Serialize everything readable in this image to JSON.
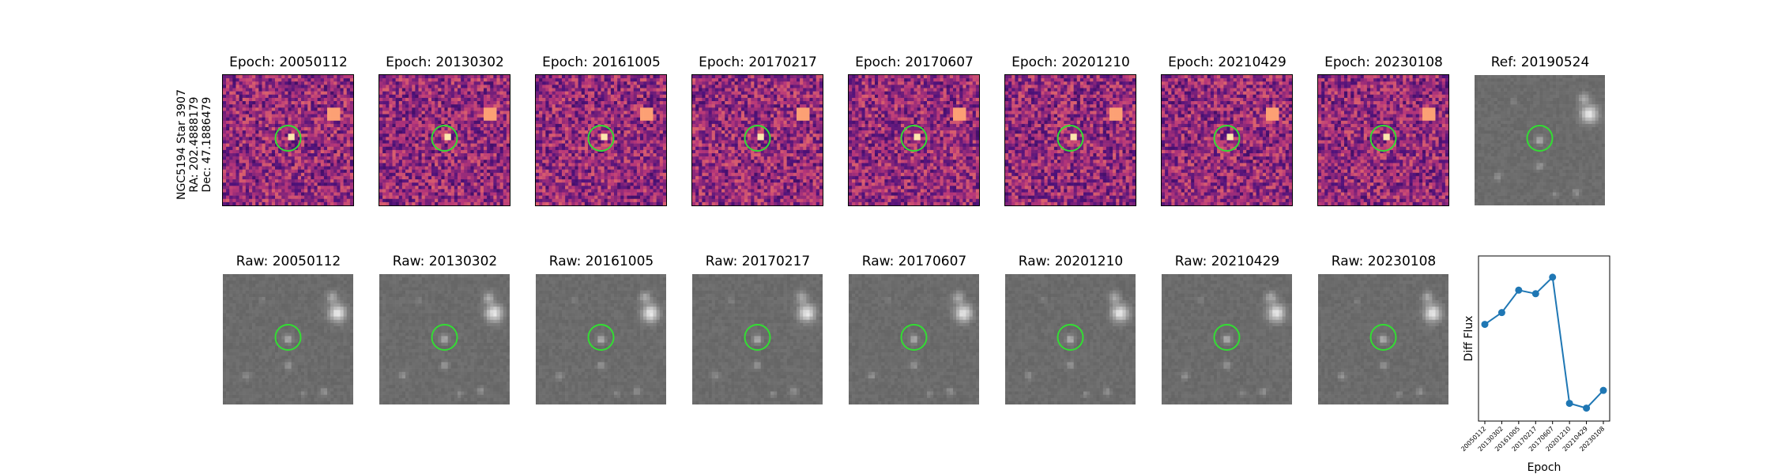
{
  "side_label": {
    "line1": "NGC5194 Star 3907",
    "line2": "RA: 202.4888179",
    "line3": "Dec: 47.1886479"
  },
  "diff_panels": [
    {
      "title": "Epoch: 20050112"
    },
    {
      "title": "Epoch: 20130302"
    },
    {
      "title": "Epoch: 20161005"
    },
    {
      "title": "Epoch: 20170217"
    },
    {
      "title": "Epoch: 20170607"
    },
    {
      "title": "Epoch: 20201210"
    },
    {
      "title": "Epoch: 20210429"
    },
    {
      "title": "Epoch: 20230108"
    }
  ],
  "ref_panel": {
    "title": "Ref: 20190524"
  },
  "raw_panels": [
    {
      "title": "Raw: 20050112"
    },
    {
      "title": "Raw: 20130302"
    },
    {
      "title": "Raw: 20161005"
    },
    {
      "title": "Raw: 20170217"
    },
    {
      "title": "Raw: 20170607"
    },
    {
      "title": "Raw: 20201210"
    },
    {
      "title": "Raw: 20210429"
    },
    {
      "title": "Raw: 20230108"
    }
  ],
  "colors": {
    "circle": "#33dd33",
    "line": "#1f77b4"
  },
  "chart_data": {
    "type": "line",
    "xlabel": "Epoch",
    "ylabel": "Diff Flux",
    "x": [
      "20050112",
      "20130302",
      "20161005",
      "20170217",
      "20170607",
      "20201210",
      "20210429",
      "20230108"
    ],
    "series": [
      {
        "values": [
          0.42,
          0.52,
          0.71,
          0.68,
          0.82,
          -0.25,
          -0.29,
          -0.14
        ]
      }
    ],
    "ylim": [
      -0.4,
      1.0
    ],
    "grid": false
  }
}
